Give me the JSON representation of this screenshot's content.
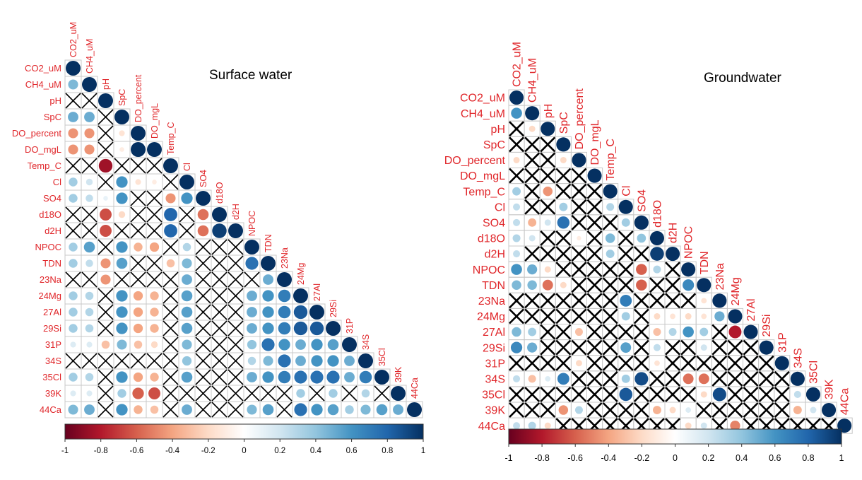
{
  "colors": {
    "label": "#e0262a",
    "grid": "#c8c8c8",
    "cross": "#000000",
    "negative_end": "#67001f",
    "neutral": "#ffffff",
    "positive_end": "#053061"
  },
  "chart_data": [
    {
      "type": "heatmap",
      "subtype": "correlogram-lower-triangle",
      "title": "Surface water",
      "variables": [
        "CO2_uM",
        "CH4_uM",
        "pH",
        "SpC",
        "DO_percent",
        "DO_mgL",
        "Temp_C",
        "Cl",
        "SO4",
        "d18O",
        "d2H",
        "NPOC",
        "TDN",
        "23Na",
        "24Mg",
        "27Al",
        "29Si",
        "31P",
        "34S",
        "35Cl",
        "39K",
        "44Ca"
      ],
      "colorbar_ticks": [
        "-1",
        "-0.8",
        "-0.6",
        "-0.4",
        "-0.2",
        "0",
        "0.2",
        "0.4",
        "0.6",
        "0.8",
        "1"
      ],
      "legend_position": "bottom",
      "cross_marks_nonsignificant": true,
      "matrix_lower": [
        [
          1
        ],
        [
          0.45,
          1
        ],
        [
          "X",
          "X",
          1
        ],
        [
          0.5,
          0.5,
          "X",
          1
        ],
        [
          -0.45,
          -0.45,
          "X",
          -0.15,
          1
        ],
        [
          -0.45,
          -0.45,
          "X",
          -0.1,
          1,
          1
        ],
        [
          "X",
          "X",
          -0.85,
          "X",
          "X",
          "X",
          1
        ],
        [
          0.35,
          0.2,
          "X",
          0.6,
          -0.15,
          -0.1,
          "X",
          1
        ],
        [
          0.35,
          0.25,
          0.1,
          0.6,
          "X",
          "X",
          -0.45,
          0.6,
          1
        ],
        [
          "X",
          "X",
          -0.65,
          -0.2,
          "X",
          "X",
          0.8,
          "X",
          -0.55,
          1
        ],
        [
          "X",
          "X",
          -0.65,
          "X",
          "X",
          "X",
          0.8,
          "X",
          -0.55,
          0.95,
          1
        ],
        [
          0.35,
          0.55,
          "X",
          0.6,
          -0.35,
          -0.4,
          "X",
          0.3,
          "X",
          "X",
          "X",
          1
        ],
        [
          0.35,
          0.25,
          -0.45,
          0.55,
          "X",
          "X",
          -0.3,
          0.45,
          "X",
          "X",
          "X",
          0.75,
          1
        ],
        [
          "X",
          "X",
          -0.45,
          "X",
          "X",
          "X",
          "X",
          0.5,
          "X",
          "X",
          "X",
          "X",
          0.5,
          1
        ],
        [
          0.35,
          0.3,
          "X",
          0.6,
          -0.4,
          -0.35,
          "X",
          0.55,
          "X",
          "X",
          "X",
          0.5,
          0.6,
          0.7,
          1
        ],
        [
          0.35,
          0.3,
          "X",
          0.6,
          -0.4,
          -0.35,
          "X",
          0.55,
          "X",
          "X",
          "X",
          0.5,
          0.6,
          0.7,
          0.85,
          1
        ],
        [
          0.35,
          0.3,
          "X",
          0.6,
          -0.4,
          -0.35,
          "X",
          0.55,
          "X",
          "X",
          "X",
          0.5,
          0.6,
          0.7,
          0.85,
          0.85,
          1
        ],
        [
          0.15,
          0.15,
          -0.3,
          0.45,
          -0.3,
          -0.2,
          "X",
          0.45,
          "X",
          "X",
          "X",
          0.4,
          0.75,
          0.6,
          0.5,
          0.6,
          0.55,
          1
        ],
        [
          "X",
          "X",
          "X",
          "X",
          "X",
          "X",
          "X",
          0.4,
          "X",
          "X",
          "X",
          0.3,
          0.45,
          0.75,
          0.5,
          0.6,
          0.6,
          0.5,
          1
        ],
        [
          0.35,
          0.3,
          "X",
          0.6,
          -0.4,
          -0.35,
          "X",
          0.55,
          "X",
          "X",
          "X",
          0.5,
          0.6,
          0.7,
          0.75,
          0.75,
          0.75,
          0.5,
          0.7,
          1
        ],
        [
          0.15,
          0.15,
          "X",
          0.35,
          -0.6,
          -0.65,
          "X",
          "X",
          "X",
          "X",
          "X",
          "X",
          "X",
          "X",
          0.35,
          "X",
          0.35,
          "X",
          0.3,
          "X",
          1
        ],
        [
          0.45,
          0.5,
          "X",
          0.6,
          -0.35,
          -0.3,
          "X",
          0.5,
          "X",
          "X",
          "X",
          0.45,
          0.55,
          "X",
          0.75,
          0.6,
          0.55,
          0.35,
          0.45,
          0.55,
          0.5,
          1
        ]
      ]
    },
    {
      "type": "heatmap",
      "subtype": "correlogram-lower-triangle",
      "title": "Groundwater",
      "variables": [
        "CO2_uM",
        "CH4_uM",
        "pH",
        "SpC",
        "DO_percent",
        "DO_mgL",
        "Temp_C",
        "Cl",
        "SO4",
        "d18O",
        "d2H",
        "NPOC",
        "TDN",
        "23Na",
        "24Mg",
        "27Al",
        "29Si",
        "31P",
        "34S",
        "35Cl",
        "39K",
        "44Ca"
      ],
      "colorbar_ticks": [
        "-1",
        "-0.8",
        "-0.6",
        "-0.4",
        "-0.2",
        "0",
        "0.2",
        "0.4",
        "0.6",
        "0.8",
        "1"
      ],
      "legend_position": "bottom",
      "cross_marks_nonsignificant": true,
      "matrix_lower": [
        [
          1
        ],
        [
          0.6,
          1
        ],
        [
          "X",
          -0.2,
          1
        ],
        [
          "X",
          "X",
          "X",
          1
        ],
        [
          -0.2,
          "X",
          "X",
          -0.2,
          1
        ],
        [
          "X",
          "X",
          "X",
          "X",
          "X",
          1
        ],
        [
          0.35,
          "X",
          -0.45,
          "X",
          "X",
          "X",
          1
        ],
        [
          0.25,
          "X",
          "X",
          0.35,
          "X",
          "X",
          0.3,
          1
        ],
        [
          0.25,
          -0.35,
          0.2,
          0.75,
          "X",
          "X",
          "X",
          0.35,
          1
        ],
        [
          0.3,
          0.2,
          "X",
          "X",
          -0.1,
          "X",
          0.45,
          "X",
          0.4,
          1
        ],
        [
          0.25,
          "X",
          "X",
          "X",
          "X",
          "X",
          0.35,
          "X",
          "X",
          0.95,
          1
        ],
        [
          0.6,
          0.5,
          -0.2,
          "X",
          "X",
          "X",
          "X",
          "X",
          -0.6,
          0.3,
          "X",
          1
        ],
        [
          0.45,
          0.45,
          -0.55,
          -0.2,
          "X",
          "X",
          "X",
          "X",
          -0.6,
          "X",
          "X",
          0.65,
          1
        ],
        [
          "X",
          "X",
          "X",
          "X",
          "X",
          "X",
          "X",
          0.7,
          "X",
          "X",
          "X",
          "X",
          -0.15,
          1
        ],
        [
          "X",
          "X",
          "X",
          "X",
          "X",
          "X",
          "X",
          0.35,
          "X",
          -0.2,
          -0.15,
          -0.2,
          -0.15,
          0.5,
          1
        ],
        [
          0.45,
          0.35,
          "X",
          "X",
          -0.3,
          "X",
          "X",
          "X",
          "X",
          -0.3,
          0.3,
          0.6,
          0.35,
          "X",
          -0.8,
          1
        ],
        [
          0.65,
          0.5,
          "X",
          "X",
          "X",
          "X",
          "X",
          0.55,
          "X",
          0.25,
          "X",
          "X",
          0.2,
          "X",
          "X",
          "X",
          1
        ],
        [
          "X",
          "X",
          "X",
          "X",
          -0.2,
          "X",
          "X",
          "X",
          "X",
          -0.15,
          "X",
          "X",
          "X",
          "X",
          "X",
          "X",
          "X",
          1
        ],
        [
          0.25,
          -0.3,
          0.15,
          0.7,
          "X",
          "X",
          "X",
          0.35,
          0.9,
          "X",
          "X",
          -0.55,
          -0.55,
          "X",
          "X",
          "X",
          "X",
          "X",
          1
        ],
        [
          "X",
          "X",
          "X",
          "X",
          "X",
          "X",
          "X",
          0.85,
          "X",
          "X",
          "X",
          "X",
          -0.2,
          0.9,
          "X",
          "X",
          "X",
          "X",
          0.25,
          1
        ],
        [
          "X",
          "X",
          "X",
          -0.45,
          0.3,
          "X",
          "X",
          "X",
          "X",
          -0.35,
          -0.2,
          0.15,
          "X",
          "X",
          "X",
          "X",
          "X",
          "X",
          -0.35,
          0.2,
          1
        ],
        [
          0.25,
          0.3,
          -0.2,
          "X",
          "X",
          "X",
          "X",
          "X",
          "X",
          "X",
          "X",
          -0.2,
          0.2,
          "X",
          -0.5,
          "X",
          "X",
          "X",
          "X",
          "X",
          "X",
          1
        ]
      ]
    }
  ]
}
